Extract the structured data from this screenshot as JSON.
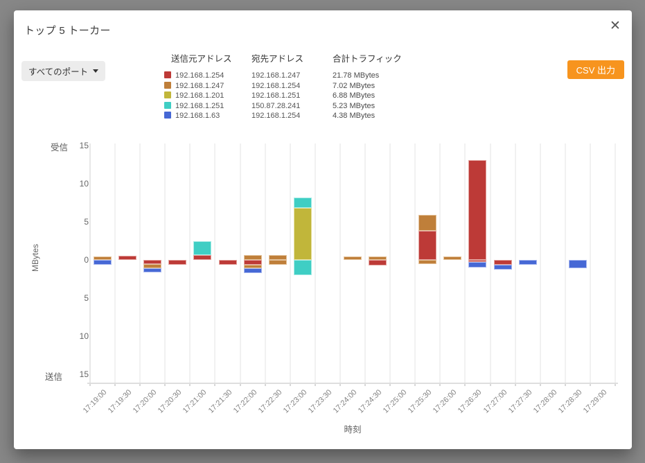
{
  "modal": {
    "title": "トップ 5 トーカー",
    "close_icon": "✕"
  },
  "toolbar": {
    "port_filter_label": "すべてのポート",
    "csv_button_label": "CSV 出力",
    "csv_button_color": "#f7941e"
  },
  "legend": {
    "headers": [
      "送信元アドレス",
      "宛先アドレス",
      "合計トラフィック"
    ]
  },
  "chart_data": {
    "type": "bar",
    "stacked": true,
    "orientation": "diverging",
    "title": "トップ 5 トーカー",
    "xlabel": "時刻",
    "ylabel": "MBytes",
    "y_axis": {
      "top_caption": "受信",
      "bottom_caption": "送信",
      "max": 15,
      "min": -15,
      "tick_step": 5
    },
    "yticks": [
      {
        "label": "15",
        "mb": 15
      },
      {
        "label": "10",
        "mb": 10
      },
      {
        "label": "5",
        "mb": 5
      },
      {
        "label": "0",
        "mb": 0
      },
      {
        "label": "5",
        "mb": -5
      },
      {
        "label": "10",
        "mb": -10
      },
      {
        "label": "15",
        "mb": -15
      }
    ],
    "series": [
      {
        "source": "192.168.1.254",
        "dest": "192.168.1.247",
        "total": "21.78 MBytes",
        "color": "#bd3a37",
        "border": "#e4a5a0"
      },
      {
        "source": "192.168.1.247",
        "dest": "192.168.1.254",
        "total": "7.02 MBytes",
        "color": "#bf7f3a",
        "border": "#e5c49d"
      },
      {
        "source": "192.168.1.201",
        "dest": "192.168.1.251",
        "total": "6.88 MBytes",
        "color": "#c1b63a",
        "border": "#e6df9f"
      },
      {
        "source": "192.168.1.251",
        "dest": "150.87.28.241",
        "total": "5.23 MBytes",
        "color": "#3fcec4",
        "border": "#a8ece6"
      },
      {
        "source": "192.168.1.63",
        "dest": "192.168.1.254",
        "total": "4.38 MBytes",
        "color": "#4668d5",
        "border": "#a9b8ef"
      }
    ],
    "categories": [
      "17:19:00",
      "17:19:30",
      "17:20:00",
      "17:20:30",
      "17:21:00",
      "17:21:30",
      "17:22:00",
      "17:22:30",
      "17:23:00",
      "17:23:30",
      "17:24:00",
      "17:24:30",
      "17:25:00",
      "17:25:30",
      "17:26:00",
      "17:26:30",
      "17:27:00",
      "17:27:30",
      "17:28:00",
      "17:28:30",
      "17:29:00"
    ],
    "bars": [
      {
        "time": "17:19:00",
        "recv": [
          {
            "s": 1,
            "mb": 0.5
          }
        ],
        "send": [
          {
            "s": 4,
            "mb": 0.6
          }
        ]
      },
      {
        "time": "17:19:30",
        "recv": [
          {
            "s": 0,
            "mb": 0.55
          }
        ],
        "send": []
      },
      {
        "time": "17:20:00",
        "recv": [],
        "send": [
          {
            "s": 0,
            "mb": 0.55
          },
          {
            "s": 1,
            "mb": 0.5
          },
          {
            "s": 4,
            "mb": 0.6
          }
        ]
      },
      {
        "time": "17:20:30",
        "recv": [],
        "send": [
          {
            "s": 0,
            "mb": 0.6
          }
        ]
      },
      {
        "time": "17:21:00",
        "recv": [
          {
            "s": 0,
            "mb": 0.6
          },
          {
            "s": 3,
            "mb": 1.9
          }
        ],
        "send": []
      },
      {
        "time": "17:21:30",
        "recv": [],
        "send": [
          {
            "s": 0,
            "mb": 0.6
          }
        ]
      },
      {
        "time": "17:22:00",
        "recv": [
          {
            "s": 1,
            "mb": 0.6
          }
        ],
        "send": [
          {
            "s": 0,
            "mb": 0.6
          },
          {
            "s": 1,
            "mb": 0.5
          },
          {
            "s": 4,
            "mb": 0.65
          }
        ]
      },
      {
        "time": "17:22:30",
        "recv": [
          {
            "s": 1,
            "mb": 0.65
          }
        ],
        "send": [
          {
            "s": 1,
            "mb": 0.6
          }
        ]
      },
      {
        "time": "17:23:00",
        "recv": [
          {
            "s": 2,
            "mb": 6.8
          },
          {
            "s": 3,
            "mb": 1.4
          }
        ],
        "send": [
          {
            "s": 3,
            "mb": 2.0
          }
        ]
      },
      {
        "time": "17:23:30",
        "recv": [],
        "send": []
      },
      {
        "time": "17:24:00",
        "recv": [
          {
            "s": 1,
            "mb": 0.5
          }
        ],
        "send": []
      },
      {
        "time": "17:24:30",
        "recv": [
          {
            "s": 1,
            "mb": 0.5
          }
        ],
        "send": [
          {
            "s": 0,
            "mb": 0.7
          }
        ]
      },
      {
        "time": "17:25:00",
        "recv": [],
        "send": []
      },
      {
        "time": "17:25:30",
        "recv": [
          {
            "s": 0,
            "mb": 3.8
          },
          {
            "s": 1,
            "mb": 2.1
          }
        ],
        "send": [
          {
            "s": 1,
            "mb": 0.55
          }
        ]
      },
      {
        "time": "17:26:00",
        "recv": [
          {
            "s": 1,
            "mb": 0.45
          }
        ],
        "send": []
      },
      {
        "time": "17:26:30",
        "recv": [
          {
            "s": 0,
            "mb": 13.1
          }
        ],
        "send": [
          {
            "s": 0,
            "mb": 0.3
          },
          {
            "s": 4,
            "mb": 0.7
          }
        ]
      },
      {
        "time": "17:27:00",
        "recv": [],
        "send": [
          {
            "s": 0,
            "mb": 0.65
          },
          {
            "s": 4,
            "mb": 0.6
          }
        ]
      },
      {
        "time": "17:27:30",
        "recv": [],
        "send": [
          {
            "s": 4,
            "mb": 0.6
          }
        ]
      },
      {
        "time": "17:28:00",
        "recv": [],
        "send": []
      },
      {
        "time": "17:28:30",
        "recv": [],
        "send": [
          {
            "s": 4,
            "mb": 1.1
          }
        ]
      },
      {
        "time": "17:29:00",
        "recv": [],
        "send": []
      }
    ]
  }
}
